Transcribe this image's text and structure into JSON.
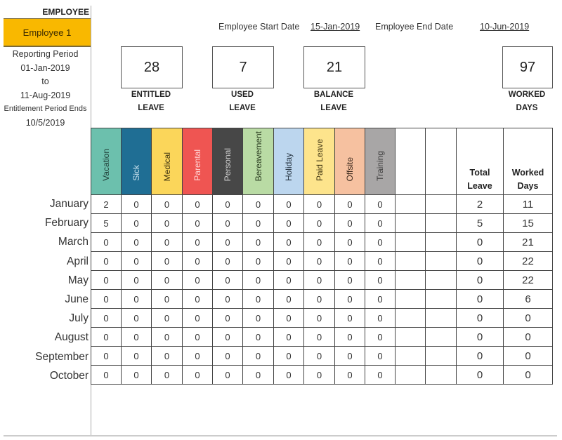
{
  "employee": {
    "label": "EMPLOYEE",
    "name": "Employee 1",
    "accent_color": "#f9b800"
  },
  "reporting": {
    "title": "Reporting Period",
    "start": "01-Jan-2019",
    "to": "to",
    "end": "11-Aug-2019",
    "entitlement_label": "Entitlement Period Ends",
    "entitlement_end": "10/5/2019"
  },
  "header": {
    "start_label": "Employee Start Date",
    "start_value": "15-Jan-2019",
    "end_label": "Employee End Date",
    "end_value": "10-Jun-2019"
  },
  "kpis": [
    {
      "value": "28",
      "line1": "ENTITLED",
      "line2": "LEAVE"
    },
    {
      "value": "7",
      "line1": "USED",
      "line2": "LEAVE"
    },
    {
      "value": "21",
      "line1": "BALANCE",
      "line2": "LEAVE"
    },
    {
      "value": "97",
      "line1": "WORKED",
      "line2": "DAYS"
    }
  ],
  "leave_types": [
    {
      "label": "Vacation",
      "bg": "#6cc0ad",
      "fg": "#1f3d36"
    },
    {
      "label": "Sick",
      "bg": "#1f6e94",
      "fg": "#cde4ef"
    },
    {
      "label": "Medical",
      "bg": "#fbd65a",
      "fg": "#3d3210"
    },
    {
      "label": "Parental",
      "bg": "#ef5552",
      "fg": "#ffd5d4"
    },
    {
      "label": "Personal",
      "bg": "#474747",
      "fg": "#d0d0d0"
    },
    {
      "label": "Bereavement",
      "bg": "#b9dba4",
      "fg": "#2a3c20"
    },
    {
      "label": "Holiday",
      "bg": "#bcd6ee",
      "fg": "#22303d"
    },
    {
      "label": "Paid Leave",
      "bg": "#fde48c",
      "fg": "#3d3210"
    },
    {
      "label": "Offsite",
      "bg": "#f6c1a0",
      "fg": "#3d2a1e"
    },
    {
      "label": "Training",
      "bg": "#a8a6a6",
      "fg": "#3a3a3a"
    },
    {
      "label": "",
      "bg": "#ffffff",
      "fg": "#333"
    },
    {
      "label": "",
      "bg": "#ffffff",
      "fg": "#333"
    }
  ],
  "totals_headers": {
    "total_line1": "Total",
    "total_line2": "Leave",
    "worked_line1": "Worked",
    "worked_line2": "Days"
  },
  "rows": [
    {
      "month": "January",
      "values": [
        "2",
        "0",
        "0",
        "0",
        "0",
        "0",
        "0",
        "0",
        "0",
        "0",
        "",
        ""
      ],
      "total": "2",
      "worked": "11"
    },
    {
      "month": "February",
      "values": [
        "5",
        "0",
        "0",
        "0",
        "0",
        "0",
        "0",
        "0",
        "0",
        "0",
        "",
        ""
      ],
      "total": "5",
      "worked": "15"
    },
    {
      "month": "March",
      "values": [
        "0",
        "0",
        "0",
        "0",
        "0",
        "0",
        "0",
        "0",
        "0",
        "0",
        "",
        ""
      ],
      "total": "0",
      "worked": "21"
    },
    {
      "month": "April",
      "values": [
        "0",
        "0",
        "0",
        "0",
        "0",
        "0",
        "0",
        "0",
        "0",
        "0",
        "",
        ""
      ],
      "total": "0",
      "worked": "22"
    },
    {
      "month": "May",
      "values": [
        "0",
        "0",
        "0",
        "0",
        "0",
        "0",
        "0",
        "0",
        "0",
        "0",
        "",
        ""
      ],
      "total": "0",
      "worked": "22"
    },
    {
      "month": "June",
      "values": [
        "0",
        "0",
        "0",
        "0",
        "0",
        "0",
        "0",
        "0",
        "0",
        "0",
        "",
        ""
      ],
      "total": "0",
      "worked": "6"
    },
    {
      "month": "July",
      "values": [
        "0",
        "0",
        "0",
        "0",
        "0",
        "0",
        "0",
        "0",
        "0",
        "0",
        "",
        ""
      ],
      "total": "0",
      "worked": "0"
    },
    {
      "month": "August",
      "values": [
        "0",
        "0",
        "0",
        "0",
        "0",
        "0",
        "0",
        "0",
        "0",
        "0",
        "",
        ""
      ],
      "total": "0",
      "worked": "0"
    },
    {
      "month": "September",
      "values": [
        "0",
        "0",
        "0",
        "0",
        "0",
        "0",
        "0",
        "0",
        "0",
        "0",
        "",
        ""
      ],
      "total": "0",
      "worked": "0"
    },
    {
      "month": "October",
      "values": [
        "0",
        "0",
        "0",
        "0",
        "0",
        "0",
        "0",
        "0",
        "0",
        "0",
        "",
        ""
      ],
      "total": "0",
      "worked": "0"
    }
  ]
}
